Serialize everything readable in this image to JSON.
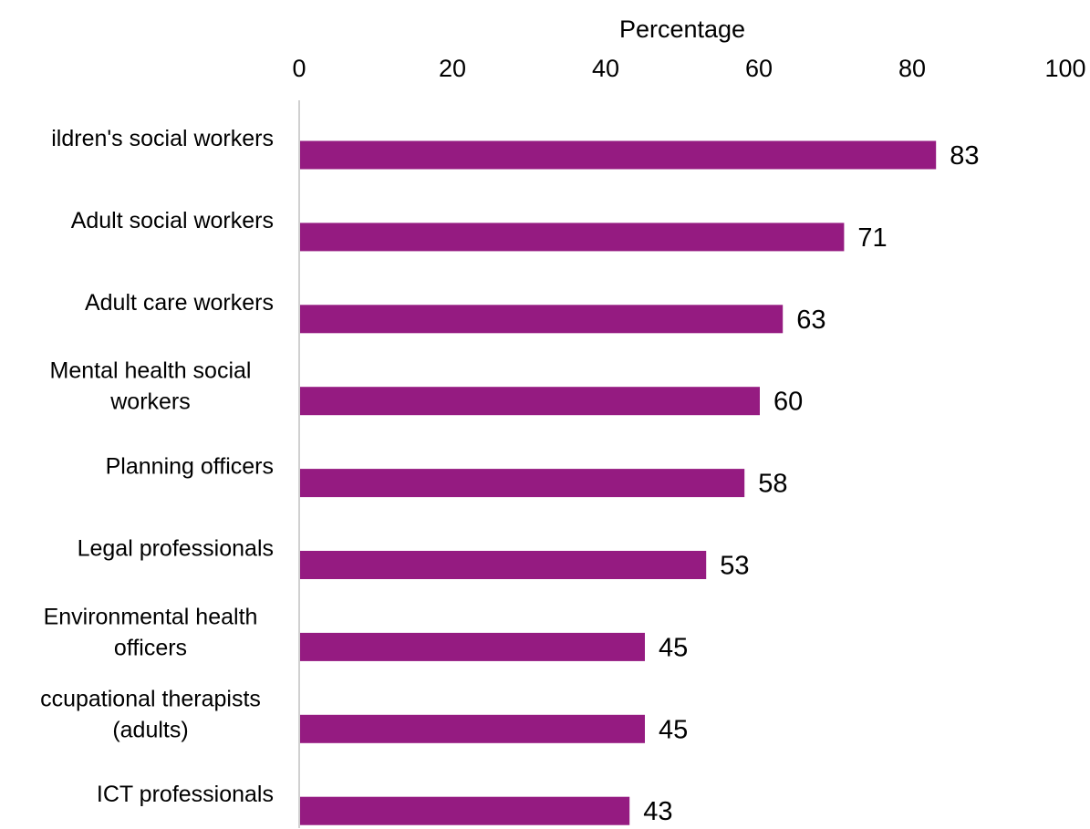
{
  "chart_data": {
    "type": "bar",
    "orientation": "horizontal",
    "title": "",
    "xlabel": "Percentage",
    "ylabel": "",
    "xlim": [
      0,
      100
    ],
    "x_ticks": [
      "0",
      "20",
      "40",
      "60",
      "80",
      "100"
    ],
    "x_axis_position": "top",
    "grid": false,
    "legend": "none",
    "bar_color": "#951b81",
    "categories": [
      [
        "ildren's social workers"
      ],
      [
        "Adult social workers"
      ],
      [
        "Adult care workers"
      ],
      [
        "Mental health social",
        "workers"
      ],
      [
        "Planning officers"
      ],
      [
        "Legal professionals"
      ],
      [
        "Environmental health",
        "officers"
      ],
      [
        "ccupational therapists",
        "(adults)"
      ],
      [
        "ICT professionals"
      ]
    ],
    "values": [
      83,
      71,
      63,
      60,
      58,
      53,
      45,
      45,
      43
    ],
    "data_labels": [
      "83",
      "71",
      "63",
      "60",
      "58",
      "53",
      "45",
      "45",
      "43"
    ]
  }
}
